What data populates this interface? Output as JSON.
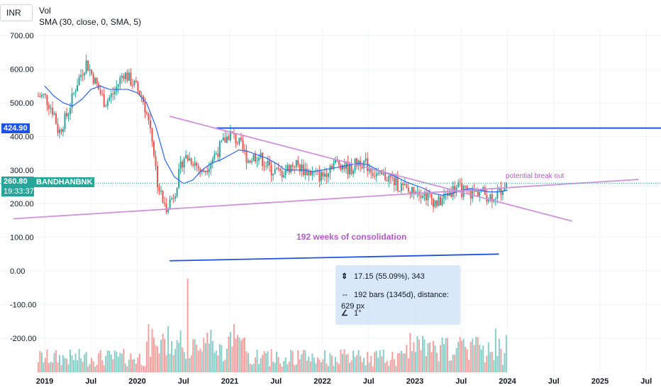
{
  "header": {
    "currency": "INR",
    "vol_label": "Vol",
    "sma_label": "SMA (30, close, 0, SMA, 5)"
  },
  "price_tags": {
    "resistance": "424.90",
    "current_price": "260.80",
    "countdown": "19:33:37",
    "symbol": "BANDHANBNK"
  },
  "annotations": {
    "breakout": "potential break out",
    "consolidation": "192 weeks of consolidation"
  },
  "measure": {
    "price_range": "17.15 (55.09%), 343",
    "bars_range": "192 bars (1345d), distance: 629 px",
    "angle": "1°"
  },
  "colors": {
    "up": "#26a69a",
    "down": "#ef5350",
    "sma": "#2962ff",
    "trendline": "#ce93d8",
    "resistance": "#1e53e5",
    "price_tag": "#26a69a"
  },
  "chart_data": {
    "type": "candlestick",
    "interval": "weekly",
    "y_tick_labels": [
      "700.00",
      "600.00",
      "500.00",
      "400.00",
      "300.00",
      "200.00",
      "100.00",
      "0.00",
      "-100.00",
      "-200.00"
    ],
    "x_tick_labels": [
      "2019",
      "Jul",
      "2020",
      "Jul",
      "2021",
      "Jul",
      "2022",
      "Jul",
      "2023",
      "Jul",
      "2024",
      "Jul",
      "2025",
      "Jul"
    ],
    "ylim": [
      -290,
      760
    ],
    "price_path": [
      [
        2019.0,
        520
      ],
      [
        2019.1,
        470
      ],
      [
        2019.15,
        410
      ],
      [
        2019.25,
        470
      ],
      [
        2019.35,
        560
      ],
      [
        2019.45,
        620
      ],
      [
        2019.55,
        560
      ],
      [
        2019.65,
        500
      ],
      [
        2019.75,
        530
      ],
      [
        2019.85,
        590
      ],
      [
        2019.95,
        560
      ],
      [
        2020.05,
        520
      ],
      [
        2020.15,
        420
      ],
      [
        2020.22,
        260
      ],
      [
        2020.3,
        185
      ],
      [
        2020.4,
        230
      ],
      [
        2020.5,
        340
      ],
      [
        2020.6,
        330
      ],
      [
        2020.7,
        290
      ],
      [
        2020.8,
        330
      ],
      [
        2020.9,
        370
      ],
      [
        2021.0,
        410
      ],
      [
        2021.1,
        380
      ],
      [
        2021.2,
        330
      ],
      [
        2021.3,
        345
      ],
      [
        2021.45,
        300
      ],
      [
        2021.55,
        290
      ],
      [
        2021.7,
        320
      ],
      [
        2021.8,
        300
      ],
      [
        2021.9,
        290
      ],
      [
        2022.0,
        280
      ],
      [
        2022.1,
        320
      ],
      [
        2022.2,
        320
      ],
      [
        2022.3,
        300
      ],
      [
        2022.4,
        330
      ],
      [
        2022.5,
        310
      ],
      [
        2022.6,
        280
      ],
      [
        2022.7,
        280
      ],
      [
        2022.8,
        260
      ],
      [
        2022.9,
        240
      ],
      [
        2022.95,
        230
      ],
      [
        2023.0,
        250
      ],
      [
        2023.1,
        230
      ],
      [
        2023.2,
        210
      ],
      [
        2023.25,
        200
      ],
      [
        2023.35,
        230
      ],
      [
        2023.45,
        250
      ],
      [
        2023.5,
        240
      ],
      [
        2023.6,
        230
      ],
      [
        2023.7,
        240
      ],
      [
        2023.8,
        220
      ],
      [
        2023.9,
        230
      ],
      [
        2023.98,
        260.8
      ]
    ],
    "sma": [
      [
        2019.0,
        550
      ],
      [
        2019.1,
        520
      ],
      [
        2019.2,
        500
      ],
      [
        2019.3,
        490
      ],
      [
        2019.4,
        510
      ],
      [
        2019.5,
        540
      ],
      [
        2019.6,
        550
      ],
      [
        2019.7,
        540
      ],
      [
        2019.8,
        540
      ],
      [
        2019.9,
        540
      ],
      [
        2020.0,
        530
      ],
      [
        2020.1,
        500
      ],
      [
        2020.2,
        430
      ],
      [
        2020.3,
        330
      ],
      [
        2020.4,
        280
      ],
      [
        2020.5,
        260
      ],
      [
        2020.6,
        270
      ],
      [
        2020.7,
        300
      ],
      [
        2020.8,
        320
      ],
      [
        2020.9,
        330
      ],
      [
        2021.0,
        345
      ],
      [
        2021.1,
        360
      ],
      [
        2021.2,
        355
      ],
      [
        2021.3,
        345
      ],
      [
        2021.4,
        335
      ],
      [
        2021.5,
        320
      ],
      [
        2021.6,
        300
      ],
      [
        2021.7,
        300
      ],
      [
        2021.8,
        300
      ],
      [
        2021.9,
        295
      ],
      [
        2022.0,
        300
      ],
      [
        2022.1,
        305
      ],
      [
        2022.2,
        310
      ],
      [
        2022.3,
        315
      ],
      [
        2022.4,
        320
      ],
      [
        2022.5,
        315
      ],
      [
        2022.6,
        300
      ],
      [
        2022.7,
        290
      ],
      [
        2022.8,
        280
      ],
      [
        2022.9,
        265
      ],
      [
        2023.0,
        255
      ],
      [
        2023.1,
        245
      ],
      [
        2023.2,
        230
      ],
      [
        2023.3,
        225
      ],
      [
        2023.4,
        230
      ],
      [
        2023.5,
        240
      ],
      [
        2023.6,
        245
      ],
      [
        2023.7,
        240
      ],
      [
        2023.8,
        235
      ],
      [
        2023.9,
        235
      ],
      [
        2024.0,
        240
      ]
    ],
    "resistance_level": 424.9,
    "upper_trendline": [
      [
        2020.35,
        460
      ],
      [
        2024.7,
        148
      ]
    ],
    "lower_trendline": [
      [
        2018.7,
        155
      ],
      [
        2024.65,
        232
      ]
    ],
    "range_marker": [
      [
        2020.35,
        30
      ],
      [
        2024.0,
        50
      ]
    ],
    "current_price": 260.8
  }
}
